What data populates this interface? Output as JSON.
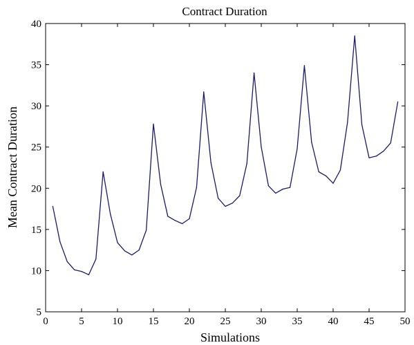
{
  "chart_data": {
    "type": "line",
    "title": "Contract Duration",
    "xlabel": "Simulations",
    "ylabel": "Mean Contract Duration",
    "xlim": [
      0,
      50
    ],
    "ylim": [
      5,
      40
    ],
    "xticks": [
      0,
      5,
      10,
      15,
      20,
      25,
      30,
      35,
      40,
      45,
      50
    ],
    "yticks": [
      5,
      10,
      15,
      20,
      25,
      30,
      35,
      40
    ],
    "grid": false,
    "line_color": "#1a1a6e",
    "series": [
      {
        "x": [
          1,
          2,
          3,
          4,
          5,
          6,
          7,
          8,
          9,
          10,
          11,
          12,
          13,
          14,
          15,
          16,
          17,
          18,
          19,
          20,
          21,
          22,
          23,
          24,
          25,
          26,
          27,
          28,
          29,
          30,
          31,
          32,
          33,
          34,
          35,
          36,
          37,
          38,
          39,
          40,
          41,
          42,
          43,
          44,
          45,
          46,
          47,
          48,
          49
        ],
        "values": [
          17.8,
          13.5,
          11.1,
          10.1,
          9.9,
          9.5,
          11.4,
          22.0,
          16.9,
          13.4,
          12.4,
          11.9,
          12.5,
          14.9,
          27.8,
          20.5,
          16.6,
          16.1,
          15.7,
          16.3,
          20.1,
          31.7,
          23.1,
          18.8,
          17.8,
          18.2,
          19.1,
          23.0,
          34.0,
          25.0,
          20.3,
          19.4,
          19.9,
          20.1,
          24.8,
          34.9,
          25.6,
          22.0,
          21.5,
          20.6,
          22.2,
          28.0,
          38.5,
          27.7,
          23.7,
          23.9,
          24.5,
          25.5,
          30.5
        ]
      }
    ]
  }
}
